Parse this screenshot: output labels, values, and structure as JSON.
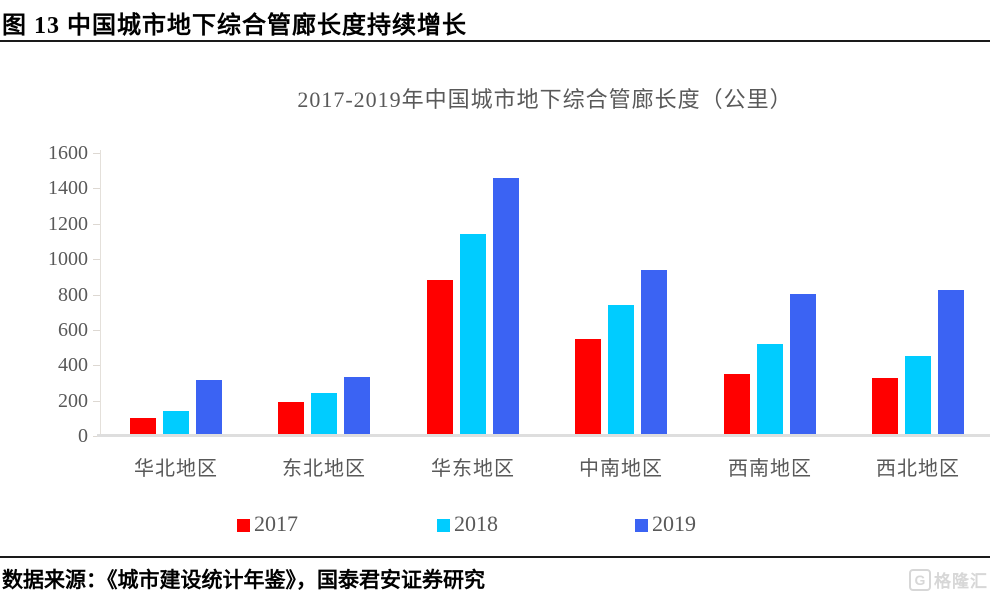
{
  "header": {
    "title": "图 13  中国城市地下综合管廊长度持续增长"
  },
  "chart_data": {
    "type": "bar",
    "title": "2017-2019年中国城市地下综合管廊长度（公里）",
    "categories": [
      "华北地区",
      "东北地区",
      "华东地区",
      "中南地区",
      "西南地区",
      "西北地区"
    ],
    "series": [
      {
        "name": "2017",
        "color": "#ff0000",
        "values": [
          100,
          195,
          880,
          550,
          350,
          330
        ]
      },
      {
        "name": "2018",
        "color": "#00ccff",
        "values": [
          140,
          245,
          1140,
          740,
          520,
          455
        ]
      },
      {
        "name": "2019",
        "color": "#3b63f3",
        "values": [
          315,
          335,
          1460,
          940,
          800,
          825
        ]
      }
    ],
    "ylim": [
      0,
      1600
    ],
    "ytick_step": 200,
    "yticks": [
      "0",
      "200",
      "400",
      "600",
      "800",
      "1000",
      "1200",
      "1400",
      "1600"
    ],
    "xlabel": "",
    "ylabel": "",
    "grid": false,
    "legend_position": "bottom"
  },
  "footer": {
    "source": "数据来源：《城市建设统计年鉴》，国泰君安证券研究",
    "logo_letter": "G",
    "logo_text": "格隆汇"
  }
}
